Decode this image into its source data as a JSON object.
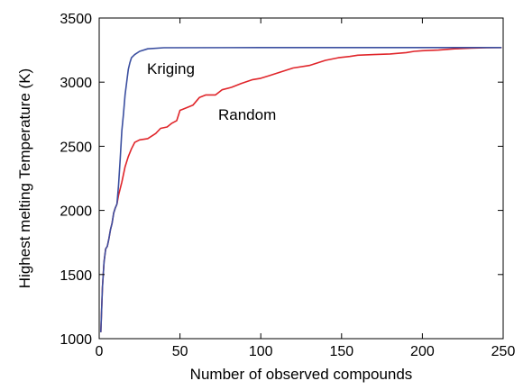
{
  "chart_data": {
    "type": "line",
    "xlabel": "Number of observed compounds",
    "ylabel": "Highest melting Temperature (K)",
    "xlim": [
      0,
      250
    ],
    "ylim": [
      1000,
      3500
    ],
    "xticks": [
      0,
      50,
      100,
      150,
      200,
      250
    ],
    "yticks": [
      1000,
      1500,
      2000,
      2500,
      3000,
      3500
    ],
    "grid": false,
    "series": [
      {
        "name": "Kriging",
        "color": "#3b4fa0",
        "points": [
          [
            1,
            1050
          ],
          [
            2,
            1400
          ],
          [
            3,
            1600
          ],
          [
            4,
            1700
          ],
          [
            5,
            1720
          ],
          [
            6,
            1780
          ],
          [
            7,
            1850
          ],
          [
            8,
            1900
          ],
          [
            9,
            1980
          ],
          [
            10,
            2020
          ],
          [
            11,
            2050
          ],
          [
            12,
            2200
          ],
          [
            13,
            2400
          ],
          [
            14,
            2620
          ],
          [
            15,
            2750
          ],
          [
            16,
            2900
          ],
          [
            17,
            3000
          ],
          [
            18,
            3100
          ],
          [
            19,
            3150
          ],
          [
            20,
            3190
          ],
          [
            22,
            3215
          ],
          [
            25,
            3240
          ],
          [
            30,
            3260
          ],
          [
            40,
            3268
          ],
          [
            100,
            3270
          ],
          [
            200,
            3270
          ],
          [
            249,
            3270
          ]
        ]
      },
      {
        "name": "Random",
        "color": "#e0252a",
        "points": [
          [
            1,
            1050
          ],
          [
            2,
            1400
          ],
          [
            3,
            1600
          ],
          [
            4,
            1700
          ],
          [
            5,
            1720
          ],
          [
            6,
            1780
          ],
          [
            7,
            1850
          ],
          [
            8,
            1900
          ],
          [
            9,
            1980
          ],
          [
            10,
            2020
          ],
          [
            11,
            2050
          ],
          [
            12,
            2120
          ],
          [
            14,
            2220
          ],
          [
            16,
            2340
          ],
          [
            18,
            2420
          ],
          [
            20,
            2480
          ],
          [
            22,
            2530
          ],
          [
            25,
            2550
          ],
          [
            30,
            2560
          ],
          [
            35,
            2600
          ],
          [
            38,
            2640
          ],
          [
            42,
            2650
          ],
          [
            45,
            2680
          ],
          [
            48,
            2700
          ],
          [
            50,
            2780
          ],
          [
            52,
            2790
          ],
          [
            58,
            2820
          ],
          [
            62,
            2880
          ],
          [
            66,
            2900
          ],
          [
            72,
            2900
          ],
          [
            76,
            2940
          ],
          [
            82,
            2960
          ],
          [
            88,
            2990
          ],
          [
            95,
            3020
          ],
          [
            100,
            3030
          ],
          [
            105,
            3050
          ],
          [
            110,
            3070
          ],
          [
            115,
            3090
          ],
          [
            120,
            3110
          ],
          [
            130,
            3130
          ],
          [
            140,
            3170
          ],
          [
            148,
            3190
          ],
          [
            155,
            3200
          ],
          [
            160,
            3210
          ],
          [
            170,
            3215
          ],
          [
            180,
            3220
          ],
          [
            190,
            3230
          ],
          [
            195,
            3240
          ],
          [
            200,
            3245
          ],
          [
            210,
            3250
          ],
          [
            220,
            3260
          ],
          [
            230,
            3265
          ],
          [
            240,
            3268
          ],
          [
            249,
            3270
          ]
        ]
      }
    ]
  }
}
